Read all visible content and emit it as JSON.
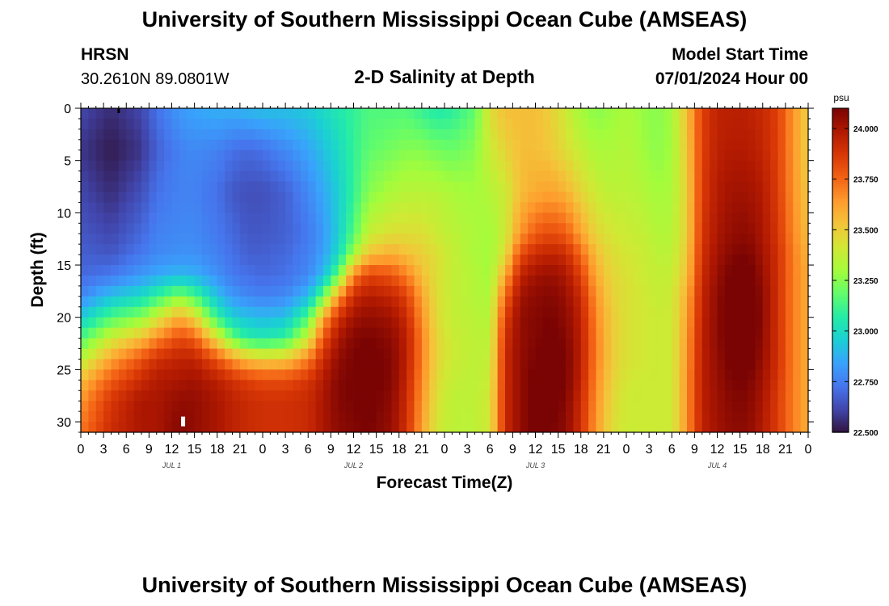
{
  "title": "University of Southern Mississippi Ocean Cube (AMSEAS)",
  "title_repeat": "University of Southern Mississippi Ocean Cube (AMSEAS)",
  "station": {
    "name": "HRSN",
    "coords": "30.2610N  89.0801W"
  },
  "model": {
    "label": "Model Start Time",
    "value": "07/01/2024 Hour 00"
  },
  "chart_data": {
    "type": "heatmap",
    "title": "2-D Salinity at Depth",
    "xlabel": "Forecast Time(Z)",
    "ylabel": "Depth (ft)",
    "ylim": [
      0,
      31
    ],
    "y_ticks": [
      "0",
      "5",
      "10",
      "15",
      "20",
      "25",
      "30"
    ],
    "y_tick_values": [
      0,
      5,
      10,
      15,
      20,
      25,
      30
    ],
    "x_range_hours": [
      0,
      96
    ],
    "x_tick_labels": [
      "0",
      "3",
      "6",
      "9",
      "12",
      "15",
      "18",
      "21",
      "0",
      "3",
      "6",
      "9",
      "12",
      "15",
      "18",
      "21",
      "0",
      "3",
      "6",
      "9",
      "12",
      "15",
      "18",
      "21",
      "0",
      "3",
      "6",
      "9",
      "12",
      "15",
      "18",
      "21",
      "0"
    ],
    "day_labels": [
      "JUL 1",
      "JUL 2",
      "JUL 3",
      "JUL 4"
    ],
    "day_label_hours": [
      12,
      36,
      60,
      84
    ],
    "colorbar": {
      "unit": "psu",
      "min": 22.5,
      "max": 24.1,
      "ticks": [
        "24.000",
        "23.750",
        "23.500",
        "23.250",
        "23.000",
        "22.750",
        "22.500"
      ],
      "tick_values": [
        24.0,
        23.75,
        23.5,
        23.25,
        23.0,
        22.75,
        22.5
      ],
      "stops": [
        "#30123b",
        "#4145ab",
        "#4675ed",
        "#39a2fc",
        "#1bcfd4",
        "#24eca6",
        "#61fc6c",
        "#a4fc3b",
        "#d1e834",
        "#f3c63a",
        "#fe9b2d",
        "#f36315",
        "#d93806",
        "#b11901",
        "#7a0403"
      ]
    },
    "field_hours": [
      0,
      4,
      8,
      10,
      13,
      15,
      18,
      20,
      22,
      24,
      27,
      30,
      32,
      34,
      36,
      38,
      41,
      43,
      45,
      47,
      49,
      52,
      54,
      56,
      58,
      60,
      62,
      64,
      66,
      68,
      70,
      72,
      74,
      76,
      78,
      80,
      82,
      84,
      86,
      88,
      90,
      92,
      94,
      96
    ],
    "field_depths": [
      0,
      4,
      8,
      12,
      14,
      16,
      18,
      20,
      22,
      24,
      26,
      28,
      31
    ],
    "field_values": [
      [
        22.62,
        22.58,
        22.62,
        22.66,
        22.68,
        22.7,
        22.78,
        22.95,
        23.15,
        23.35,
        23.55,
        23.65,
        23.72
      ],
      [
        22.56,
        22.52,
        22.56,
        22.62,
        22.66,
        22.74,
        22.92,
        23.15,
        23.4,
        23.62,
        23.78,
        23.88,
        23.92
      ],
      [
        22.62,
        22.58,
        22.64,
        22.7,
        22.74,
        22.82,
        23.0,
        23.25,
        23.55,
        23.8,
        23.92,
        24.0,
        24.0
      ],
      [
        22.72,
        22.68,
        22.72,
        22.76,
        22.78,
        22.86,
        23.1,
        23.4,
        23.68,
        23.9,
        23.98,
        24.0,
        24.0
      ],
      [
        22.82,
        22.76,
        22.76,
        22.78,
        22.8,
        22.9,
        23.25,
        23.6,
        23.82,
        23.95,
        24.0,
        24.05,
        24.08
      ],
      [
        22.85,
        22.78,
        22.76,
        22.78,
        22.8,
        22.88,
        23.15,
        23.48,
        23.78,
        23.95,
        24.02,
        24.05,
        24.05
      ],
      [
        22.88,
        22.76,
        22.72,
        22.74,
        22.76,
        22.8,
        22.92,
        23.1,
        23.45,
        23.8,
        23.96,
        24.0,
        24.0
      ],
      [
        22.88,
        22.72,
        22.66,
        22.7,
        22.72,
        22.74,
        22.82,
        22.96,
        23.2,
        23.65,
        23.9,
        23.95,
        23.95
      ],
      [
        22.9,
        22.7,
        22.64,
        22.66,
        22.68,
        22.72,
        22.78,
        22.92,
        23.08,
        23.55,
        23.85,
        23.92,
        23.92
      ],
      [
        22.92,
        22.72,
        22.64,
        22.66,
        22.68,
        22.7,
        22.76,
        22.9,
        23.05,
        23.5,
        23.82,
        23.9,
        23.9
      ],
      [
        22.92,
        22.78,
        22.68,
        22.68,
        22.7,
        22.72,
        22.78,
        22.92,
        23.1,
        23.52,
        23.82,
        23.9,
        23.9
      ],
      [
        22.95,
        22.85,
        22.78,
        22.74,
        22.76,
        22.78,
        22.9,
        23.15,
        23.4,
        23.7,
        23.88,
        23.92,
        23.92
      ],
      [
        23.0,
        22.92,
        22.86,
        22.82,
        22.84,
        22.9,
        23.2,
        23.6,
        23.8,
        23.92,
        23.98,
        24.0,
        24.0
      ],
      [
        23.05,
        23.0,
        22.96,
        22.96,
        23.0,
        23.2,
        23.65,
        23.9,
        24.0,
        24.05,
        24.08,
        24.08,
        24.06
      ],
      [
        23.1,
        23.1,
        23.1,
        23.16,
        23.3,
        23.7,
        23.92,
        24.02,
        24.08,
        24.1,
        24.1,
        24.1,
        24.08
      ],
      [
        23.15,
        23.18,
        23.25,
        23.38,
        23.55,
        23.85,
        23.98,
        24.05,
        24.1,
        24.12,
        24.12,
        24.12,
        24.1
      ],
      [
        23.15,
        23.22,
        23.32,
        23.45,
        23.6,
        23.8,
        23.94,
        24.02,
        24.06,
        24.08,
        24.08,
        24.06,
        24.04
      ],
      [
        23.15,
        23.25,
        23.35,
        23.45,
        23.55,
        23.7,
        23.85,
        23.92,
        23.96,
        23.96,
        23.94,
        23.92,
        23.9
      ],
      [
        23.1,
        23.25,
        23.35,
        23.45,
        23.5,
        23.55,
        23.62,
        23.66,
        23.7,
        23.7,
        23.68,
        23.65,
        23.62
      ],
      [
        23.05,
        23.22,
        23.35,
        23.4,
        23.45,
        23.45,
        23.45,
        23.46,
        23.48,
        23.48,
        23.46,
        23.44,
        23.42
      ],
      [
        23.08,
        23.2,
        23.32,
        23.36,
        23.38,
        23.38,
        23.38,
        23.38,
        23.4,
        23.4,
        23.38,
        23.36,
        23.36
      ],
      [
        23.18,
        23.25,
        23.3,
        23.32,
        23.32,
        23.34,
        23.34,
        23.35,
        23.36,
        23.36,
        23.36,
        23.36,
        23.36
      ],
      [
        23.45,
        23.4,
        23.34,
        23.3,
        23.3,
        23.3,
        23.32,
        23.34,
        23.36,
        23.38,
        23.4,
        23.42,
        23.42
      ],
      [
        23.55,
        23.48,
        23.4,
        23.4,
        23.45,
        23.6,
        23.75,
        23.85,
        23.9,
        23.92,
        23.92,
        23.92,
        23.92
      ],
      [
        23.55,
        23.55,
        23.55,
        23.65,
        23.82,
        23.95,
        24.02,
        24.05,
        24.05,
        24.05,
        24.05,
        24.05,
        24.05
      ],
      [
        23.55,
        23.55,
        23.6,
        23.78,
        23.92,
        24.02,
        24.06,
        24.08,
        24.08,
        24.1,
        24.12,
        24.12,
        24.12
      ],
      [
        23.5,
        23.52,
        23.62,
        23.82,
        23.95,
        24.04,
        24.08,
        24.1,
        24.12,
        24.14,
        24.14,
        24.12,
        24.1
      ],
      [
        23.4,
        23.45,
        23.58,
        23.78,
        23.92,
        24.0,
        24.04,
        24.06,
        24.08,
        24.1,
        24.1,
        24.08,
        24.06
      ],
      [
        23.3,
        23.38,
        23.48,
        23.62,
        23.75,
        23.85,
        23.92,
        23.95,
        23.96,
        23.96,
        23.95,
        23.92,
        23.9
      ],
      [
        23.25,
        23.32,
        23.4,
        23.48,
        23.55,
        23.6,
        23.65,
        23.68,
        23.7,
        23.7,
        23.68,
        23.66,
        23.64
      ],
      [
        23.28,
        23.32,
        23.36,
        23.42,
        23.46,
        23.48,
        23.5,
        23.52,
        23.52,
        23.52,
        23.5,
        23.48,
        23.46
      ],
      [
        23.32,
        23.34,
        23.36,
        23.4,
        23.42,
        23.44,
        23.44,
        23.44,
        23.44,
        23.44,
        23.42,
        23.4,
        23.4
      ],
      [
        23.28,
        23.3,
        23.34,
        23.38,
        23.4,
        23.4,
        23.42,
        23.42,
        23.42,
        23.42,
        23.4,
        23.4,
        23.4
      ],
      [
        23.25,
        23.26,
        23.3,
        23.34,
        23.36,
        23.38,
        23.38,
        23.4,
        23.4,
        23.4,
        23.4,
        23.4,
        23.4
      ],
      [
        23.3,
        23.3,
        23.32,
        23.34,
        23.36,
        23.38,
        23.4,
        23.4,
        23.4,
        23.4,
        23.4,
        23.4,
        23.4
      ],
      [
        23.55,
        23.52,
        23.5,
        23.5,
        23.52,
        23.55,
        23.6,
        23.62,
        23.64,
        23.65,
        23.66,
        23.66,
        23.66
      ],
      [
        23.85,
        23.85,
        23.86,
        23.88,
        23.9,
        23.92,
        23.94,
        23.95,
        23.96,
        23.96,
        23.96,
        23.96,
        23.95
      ],
      [
        23.95,
        23.96,
        23.98,
        24.0,
        24.02,
        24.04,
        24.06,
        24.06,
        24.06,
        24.05,
        24.04,
        24.03,
        24.02
      ],
      [
        23.96,
        23.98,
        24.02,
        24.05,
        24.08,
        24.12,
        24.14,
        24.16,
        24.15,
        24.12,
        24.1,
        24.08,
        24.06
      ],
      [
        23.96,
        23.98,
        24.02,
        24.06,
        24.1,
        24.14,
        24.16,
        24.18,
        24.18,
        24.14,
        24.1,
        24.08,
        24.06
      ],
      [
        23.92,
        23.94,
        23.98,
        24.0,
        24.02,
        24.04,
        24.06,
        24.06,
        24.05,
        24.04,
        24.02,
        24.0,
        23.98
      ],
      [
        23.85,
        23.85,
        23.86,
        23.88,
        23.9,
        23.9,
        23.9,
        23.9,
        23.9,
        23.9,
        23.88,
        23.86,
        23.86
      ],
      [
        23.65,
        23.65,
        23.66,
        23.68,
        23.7,
        23.7,
        23.7,
        23.7,
        23.7,
        23.7,
        23.7,
        23.7,
        23.7
      ],
      [
        23.5,
        23.5,
        23.52,
        23.55,
        23.58,
        23.6,
        23.6,
        23.6,
        23.6,
        23.6,
        23.6,
        23.6,
        23.6
      ]
    ]
  }
}
